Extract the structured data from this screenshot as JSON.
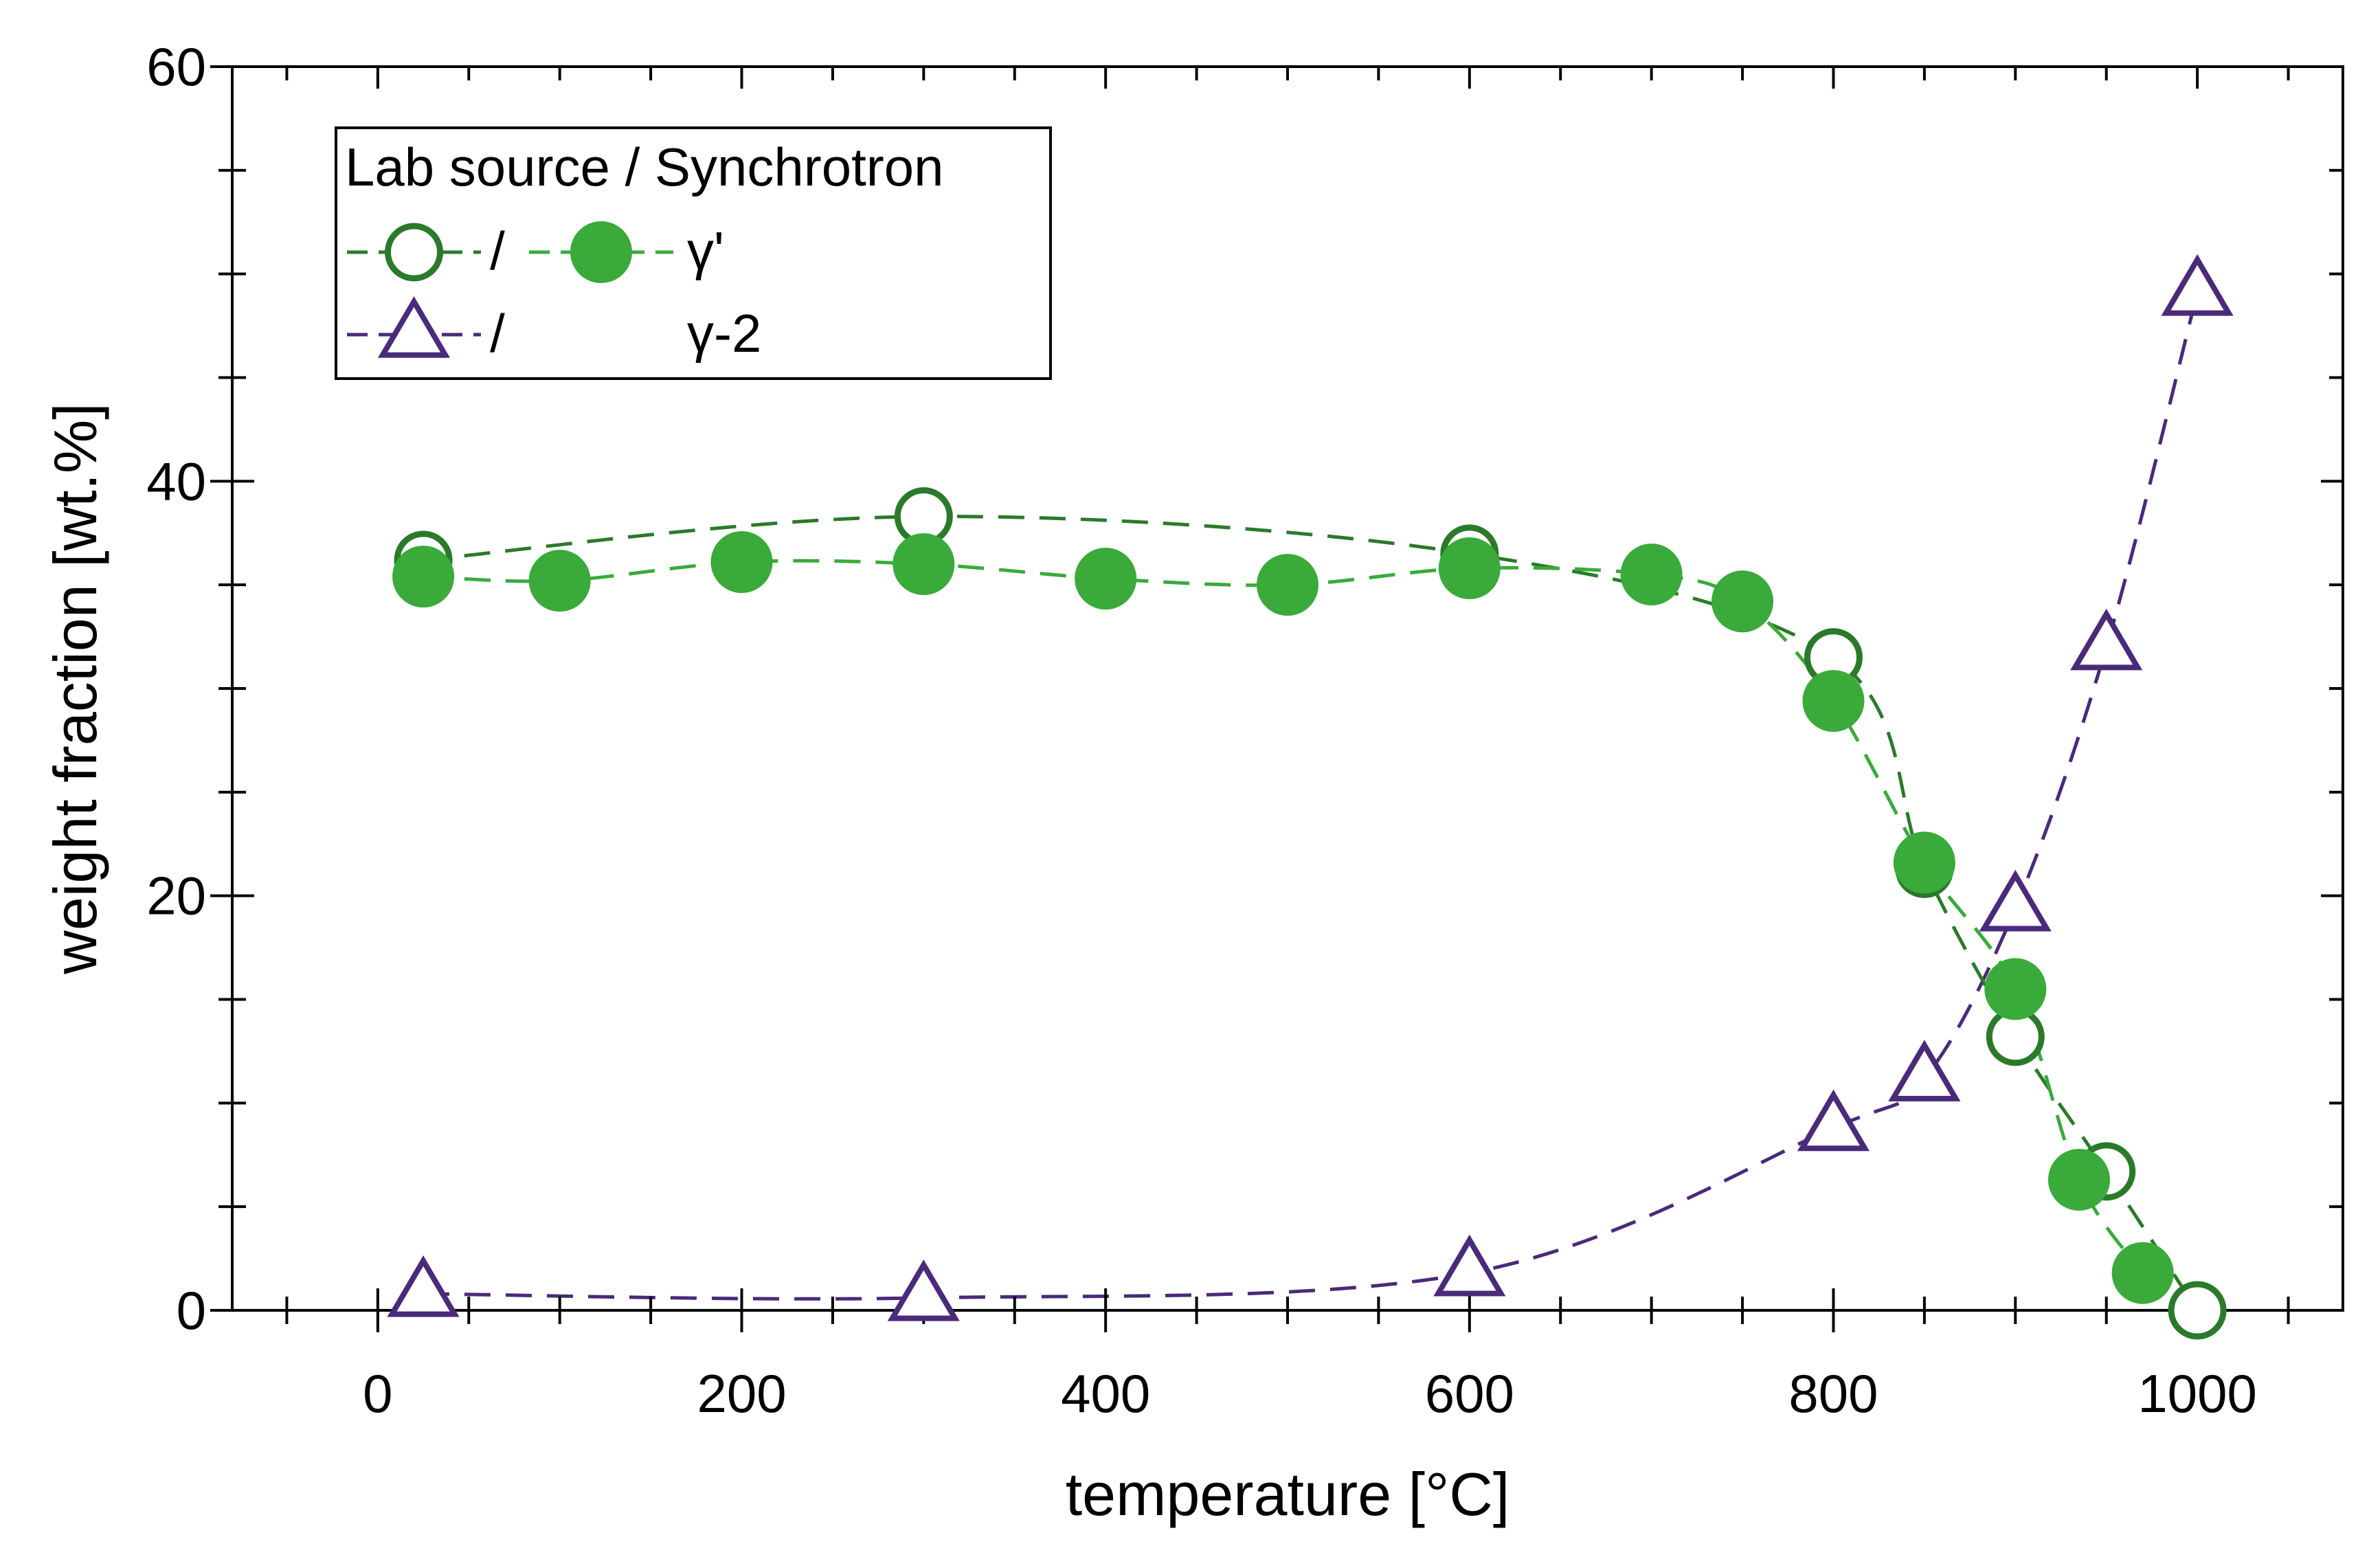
{
  "chart_data": {
    "type": "line",
    "title": "",
    "xlabel": "temperature [°C]",
    "ylabel": "weight fraction [wt.%]",
    "xlim": [
      -80,
      1080
    ],
    "ylim": [
      0,
      60
    ],
    "x_ticks": [
      0,
      200,
      400,
      600,
      800,
      1000
    ],
    "y_ticks": [
      0,
      20,
      40,
      60
    ],
    "x_tick_labels": [
      "0",
      "200",
      "400",
      "600",
      "800",
      "1000"
    ],
    "y_tick_labels": [
      "0",
      "20",
      "40",
      "60"
    ],
    "grid": false,
    "legend": {
      "position": "top-left",
      "header": "Lab source / Synchrotron",
      "separator": "/",
      "rows": [
        {
          "label": "γ'",
          "series": [
            "gp_lab",
            "gp_syn"
          ]
        },
        {
          "label": "γ-2",
          "series": [
            "g2_lab"
          ]
        }
      ]
    },
    "series": [
      {
        "id": "gp_lab",
        "name": "γ' (Lab source)",
        "marker": "circle-open",
        "color": "#2a7a2a",
        "x": [
          25,
          300,
          600,
          800,
          850,
          900,
          950,
          1000
        ],
        "y": [
          36.2,
          38.3,
          36.5,
          31.5,
          21.3,
          13.2,
          6.7,
          0.0
        ]
      },
      {
        "id": "gp_syn",
        "name": "γ' (Synchrotron)",
        "marker": "circle-filled",
        "color": "#3aaa3a",
        "x": [
          25,
          100,
          200,
          300,
          400,
          500,
          600,
          700,
          750,
          800,
          850,
          900,
          935,
          970
        ],
        "y": [
          35.4,
          35.2,
          36.1,
          36.0,
          35.3,
          35.0,
          35.8,
          35.5,
          34.2,
          29.4,
          21.6,
          15.5,
          6.3,
          1.8
        ]
      },
      {
        "id": "g2_lab",
        "name": "γ-2 (Lab source)",
        "marker": "triangle-open",
        "color": "#4a2a7a",
        "x": [
          25,
          300,
          600,
          800,
          850,
          900,
          950,
          1000
        ],
        "y": [
          0.8,
          0.6,
          1.8,
          8.8,
          11.2,
          19.4,
          32.0,
          49.1
        ]
      }
    ]
  }
}
